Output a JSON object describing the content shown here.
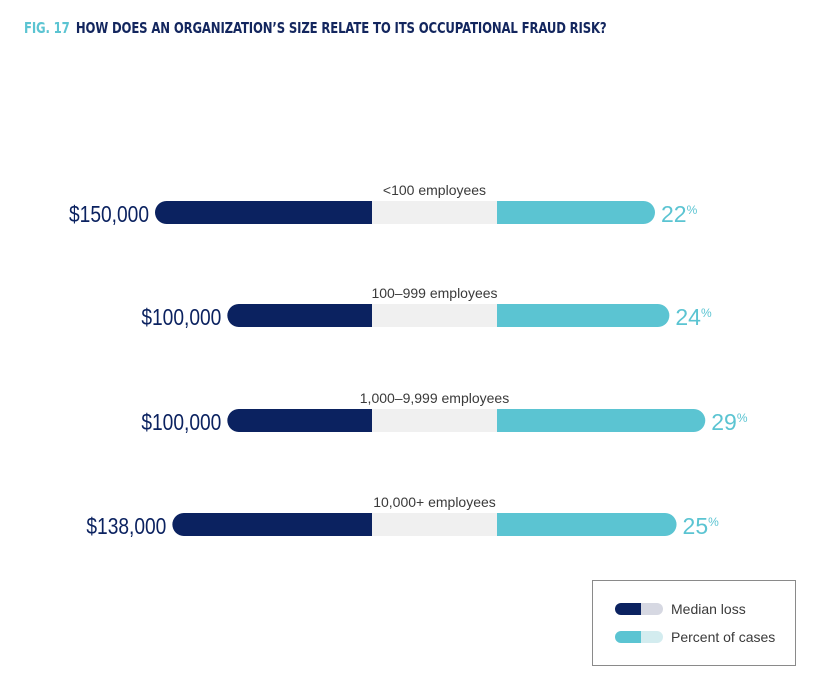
{
  "chart_data": {
    "type": "bar",
    "title_prefix": "FIG. 17",
    "title": "HOW DOES AN ORGANIZATION’S SIZE RELATE TO ITS OCCUPATIONAL FRAUD RISK?",
    "categories": [
      "<100 employees",
      "100–999 employees",
      "1,000–9,999 employees",
      "10,000+ employees"
    ],
    "series": [
      {
        "name": "Median loss",
        "values": [
          150000,
          100000,
          100000,
          138000
        ],
        "labels": [
          "$150,000",
          "$100,000",
          "$100,000",
          "$138,000"
        ]
      },
      {
        "name": "Percent of cases",
        "values": [
          22,
          24,
          29,
          25
        ],
        "labels": [
          "22",
          "24",
          "29",
          "25"
        ],
        "unit": "%"
      }
    ],
    "legend": {
      "position": "bottom-right",
      "items": [
        {
          "label": "Median loss"
        },
        {
          "label": "Percent of cases"
        }
      ]
    },
    "grid": false
  },
  "colors": {
    "navy": "#0b2260",
    "teal": "#5bc4d2",
    "track": "#f0f0f0",
    "legend_navy_light": "#d6d8e2",
    "legend_teal_light": "#d3ecef",
    "category_text": "#3a3a3a"
  }
}
